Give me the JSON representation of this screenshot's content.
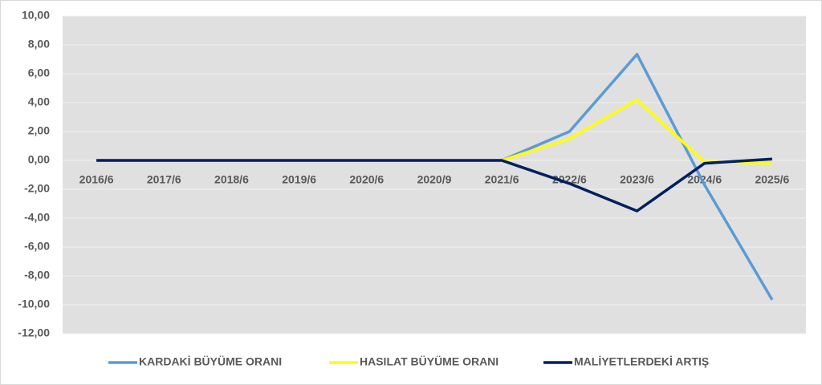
{
  "chart_data": {
    "type": "line",
    "categories": [
      "2016/6",
      "2017/6",
      "2018/6",
      "2019/6",
      "2020/6",
      "2020/9",
      "2021/6",
      "2022/6",
      "2023/6",
      "2024/6",
      "2025/6"
    ],
    "series": [
      {
        "name": "KARDAKİ BÜYÜME ORANI",
        "color": "#5b9bd5",
        "values": [
          0,
          0,
          0,
          0,
          0,
          0,
          0,
          2.0,
          7.35,
          -1.7,
          -9.65
        ]
      },
      {
        "name": "HASILAT BÜYÜME ORANI",
        "color": "#ffff00",
        "values": [
          0,
          0,
          0,
          0,
          0,
          0,
          0,
          1.5,
          4.2,
          -0.1,
          -0.2
        ]
      },
      {
        "name": "MALİYETLERDEKİ ARTIŞ",
        "color": "#002060",
        "values": [
          0,
          0,
          0,
          0,
          0,
          0,
          0,
          -1.6,
          -3.5,
          -0.2,
          0.1
        ]
      }
    ],
    "ylim": [
      -12,
      10
    ],
    "yticks": [
      {
        "value": -12,
        "label": "-12,00"
      },
      {
        "value": -10,
        "label": "-10,00"
      },
      {
        "value": -8,
        "label": "-8,00"
      },
      {
        "value": -6,
        "label": "-6,00"
      },
      {
        "value": -4,
        "label": "-4,00"
      },
      {
        "value": -2,
        "label": "-2,00"
      },
      {
        "value": 0,
        "label": "0,00"
      },
      {
        "value": 2,
        "label": "2,00"
      },
      {
        "value": 4,
        "label": "4,00"
      },
      {
        "value": 6,
        "label": "6,00"
      },
      {
        "value": 8,
        "label": "8,00"
      },
      {
        "value": 10,
        "label": "10,00"
      }
    ],
    "grid": true,
    "legend": "bottom"
  }
}
